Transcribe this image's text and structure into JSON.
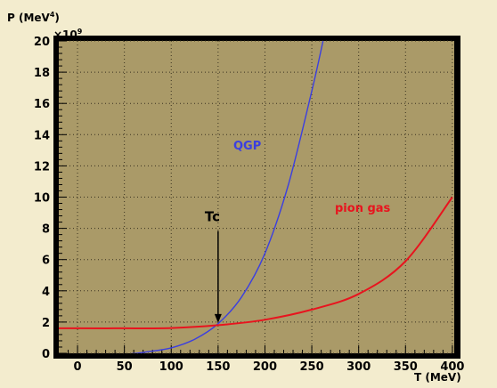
{
  "chart_data": {
    "type": "line",
    "ylabel_base": "P (MeV",
    "ylabel_exp": "4",
    "ylabel_close": ")",
    "multiplier_base": "×10",
    "multiplier_exp": "9",
    "xlabel": "T (MeV)",
    "xlim": [
      -20,
      402
    ],
    "ylim": [
      0,
      20
    ],
    "xticks": [
      0,
      50,
      100,
      150,
      200,
      250,
      300,
      350,
      400
    ],
    "yticks": [
      0,
      2,
      4,
      6,
      8,
      10,
      12,
      14,
      16,
      18,
      20
    ],
    "xtick_labels": [
      "0",
      "50",
      "100",
      "150",
      "200",
      "250",
      "300",
      "350",
      "400"
    ],
    "ytick_labels": [
      "0",
      "2",
      "4",
      "6",
      "8",
      "10",
      "12",
      "14",
      "16",
      "18",
      "20"
    ],
    "grid": true,
    "series": [
      {
        "name": "QGP",
        "color": "#3b3fe0",
        "points": [
          [
            0,
            -0.1
          ],
          [
            50,
            -0.06
          ],
          [
            75,
            0.1
          ],
          [
            100,
            0.35
          ],
          [
            125,
            0.9
          ],
          [
            150,
            1.9
          ],
          [
            175,
            3.6
          ],
          [
            200,
            6.4
          ],
          [
            225,
            10.8
          ],
          [
            250,
            16.8
          ],
          [
            262,
            20.0
          ]
        ]
      },
      {
        "name": "pion gas",
        "color": "#e8141e",
        "points": [
          [
            -20,
            1.6
          ],
          [
            0,
            1.6
          ],
          [
            50,
            1.6
          ],
          [
            100,
            1.62
          ],
          [
            150,
            1.8
          ],
          [
            200,
            2.15
          ],
          [
            250,
            2.8
          ],
          [
            300,
            3.8
          ],
          [
            350,
            5.9
          ],
          [
            400,
            10.0
          ]
        ]
      }
    ],
    "annotations": [
      {
        "text": "Tc",
        "x": 150,
        "y": 8,
        "arrow_to_y": 2
      }
    ]
  }
}
